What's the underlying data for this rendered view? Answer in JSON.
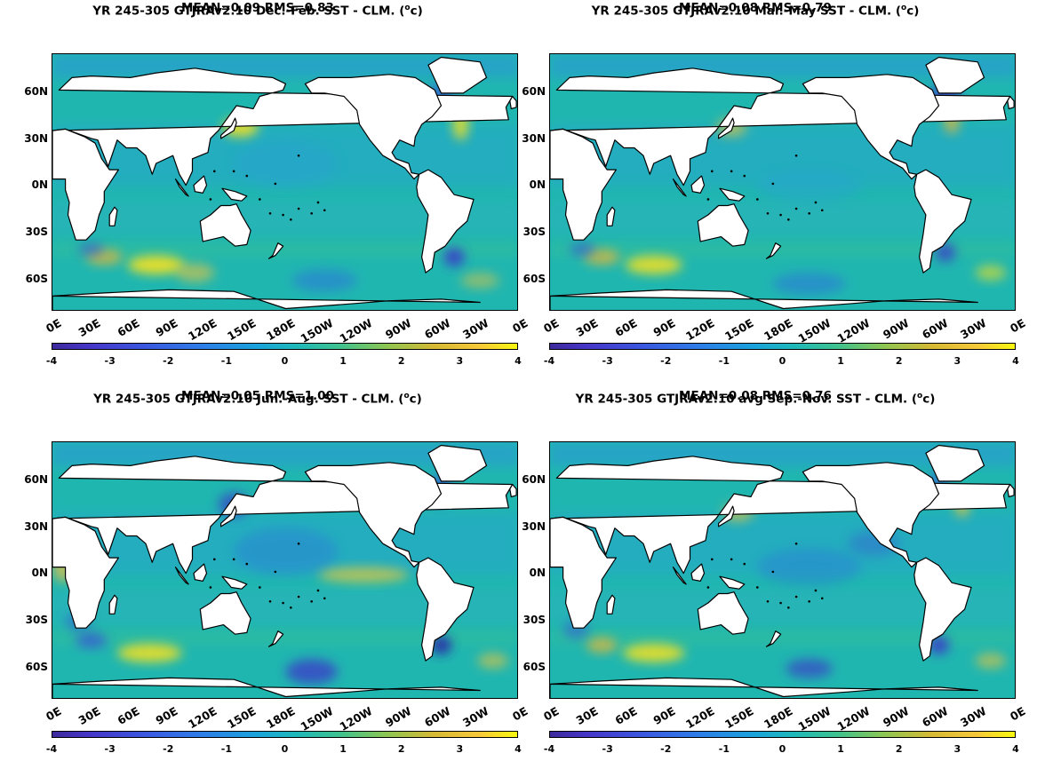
{
  "panels": [
    {
      "title": "YR 245-305 GTJRAv2.10  Dec.-Feb. SST - CLM. (",
      "unit_sup": "o",
      "unit_tail": "c)",
      "stats": "MEAN=0.09   RMS=0.83"
    },
    {
      "title": "YR 245-305 GTJRAv2.10 Mar.-May SST - CLM. (",
      "unit_sup": "o",
      "unit_tail": "c)",
      "stats": "MEAN=0.08   RMS=0.79"
    },
    {
      "title": "YR 245-305 GTJRAv2.10 Jun.-Aug. SST - CLM. (",
      "unit_sup": "o",
      "unit_tail": "c)",
      "stats": "MEAN=0.05   RMS=1.00"
    },
    {
      "title": "YR 245-305 GTJRAv2.10 avg Sep.-Nov. SST - CLM. (",
      "unit_sup": "o",
      "unit_tail": "c)",
      "stats": "MEAN=0.08   RMS=0.76"
    }
  ],
  "lat_labels": [
    "60N",
    "30N",
    "0N",
    "30S",
    "60S"
  ],
  "lon_labels": [
    "0E",
    "30E",
    "60E",
    "90E",
    "120E",
    "150E",
    "180E",
    "150W",
    "120W",
    "90W",
    "60W",
    "30W",
    "0E"
  ],
  "colorbar_ticks": [
    "-4",
    "-3",
    "-2",
    "-1",
    "0",
    "1",
    "2",
    "3",
    "4"
  ],
  "colors": {
    "ocean": "#20b6b0",
    "warm": "#f9e21a",
    "cool": "#3a4fd8",
    "land": "#ffffff"
  }
}
